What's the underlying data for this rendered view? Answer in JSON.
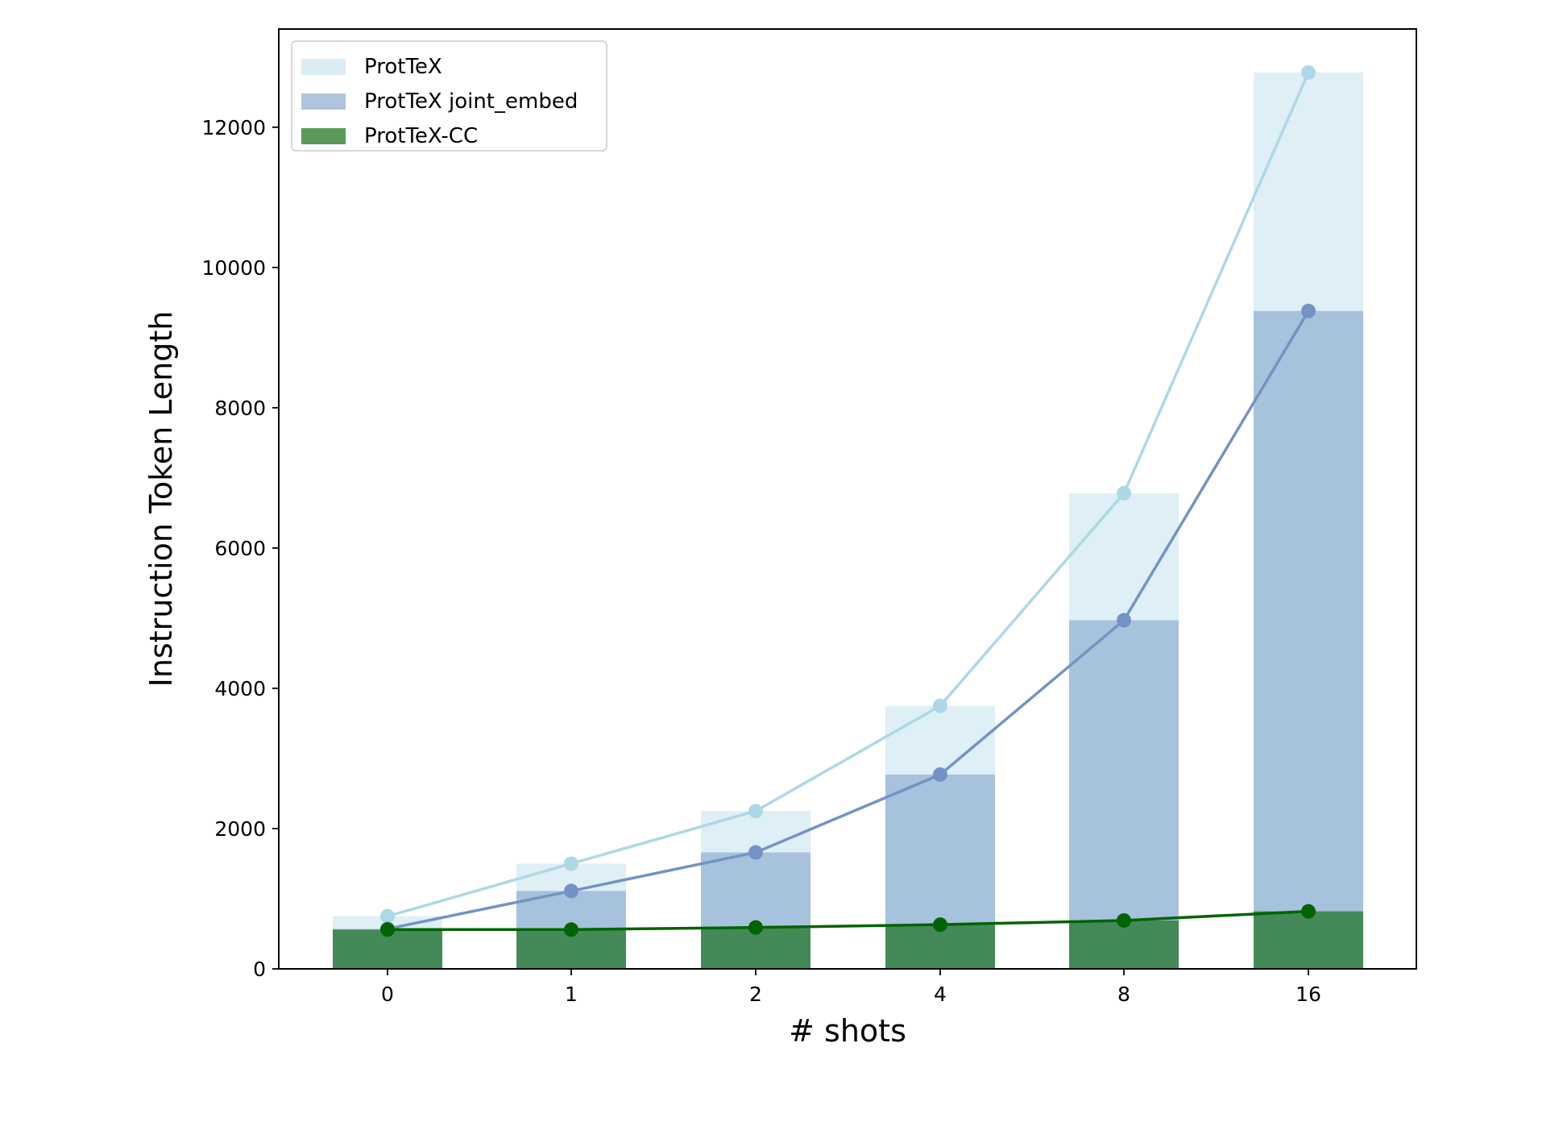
{
  "chart_data": {
    "type": "bar",
    "title": "",
    "xlabel": "# shots",
    "ylabel": "Instruction Token Length",
    "categories": [
      "0",
      "1",
      "2",
      "4",
      "8",
      "16"
    ],
    "ylim": [
      0,
      13400
    ],
    "yticks": [
      0,
      2000,
      4000,
      6000,
      8000,
      10000,
      12000
    ],
    "grid": false,
    "legend_position": "top-left",
    "overlay": "line with markers through bar tops for each series",
    "series": [
      {
        "name": "ProtTeX",
        "values": [
          750,
          1500,
          2250,
          3750,
          6780,
          12780
        ],
        "bar_color": "#add8e6",
        "bar_opacity": 0.4,
        "line_color": "#add8e6"
      },
      {
        "name": "ProtTeX joint_embed",
        "values": [
          570,
          1110,
          1660,
          2770,
          4970,
          9380
        ],
        "bar_color": "#7a9cc6",
        "bar_opacity": 0.55,
        "line_color": "#7393c4"
      },
      {
        "name": "ProtTeX-CC",
        "values": [
          560,
          560,
          590,
          630,
          690,
          820
        ],
        "bar_color": "#006400",
        "bar_opacity": 0.6,
        "line_color": "#006400"
      }
    ]
  }
}
